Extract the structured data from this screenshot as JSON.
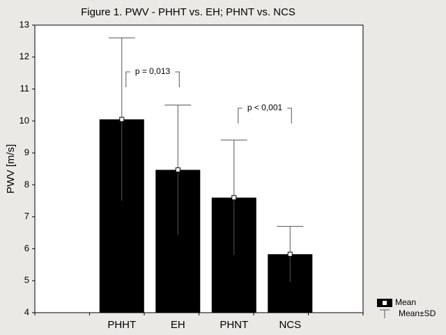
{
  "chart_data": {
    "type": "bar",
    "title": "Figure 1. PWV - PHHT vs. EH; PHNT vs. NCS",
    "y_label": "PWV [m/s]",
    "categories": [
      "PHHT",
      "EH",
      "PHNT",
      "NCS"
    ],
    "values": [
      10.05,
      8.47,
      7.6,
      5.83
    ],
    "errors": [
      2.55,
      2.03,
      1.8,
      0.87
    ],
    "color": "#000000",
    "ylim": [
      4,
      13
    ],
    "yticks": [
      4,
      5,
      6,
      7,
      8,
      9,
      10,
      11,
      12,
      13
    ],
    "annotations": [
      "p = 0,013",
      "p < 0,001"
    ],
    "legend": [
      "Mean",
      "Mean±SD"
    ],
    "legend_position": "lower right"
  }
}
